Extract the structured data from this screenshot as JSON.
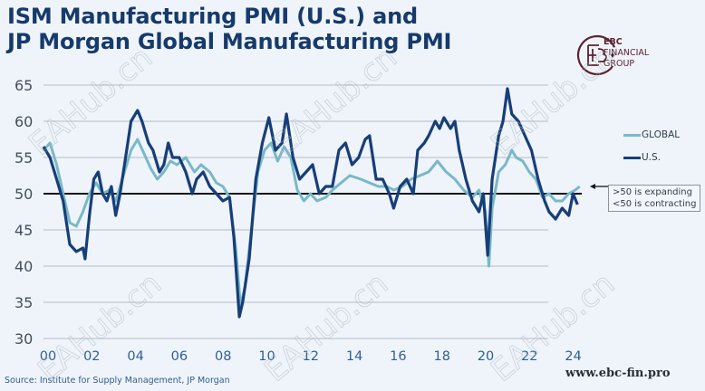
{
  "title_lines": [
    "ISM Manufacturing PMI (U.S.) and",
    "JP Morgan Global Manufacturing PMI"
  ],
  "logo": {
    "line1": "EBC",
    "line2": "FINANCIAL",
    "line3": "GROUP",
    "color": "#5a2430"
  },
  "source": "Source:  Institute for Supply Management, JP Morgan",
  "website": "www.ebc-fin.pro",
  "watermark_text": "EAHub.cn",
  "annotation": {
    "line1": ">50 is expanding",
    "line2": "<50 is contracting"
  },
  "chart_data": {
    "type": "line",
    "title": "ISM Manufacturing PMI (U.S.) and JP Morgan Global Manufacturing PMI",
    "xlabel": "",
    "ylabel": "",
    "xlim": [
      2000,
      2024.6
    ],
    "ylim": [
      30,
      65
    ],
    "yticks": [
      30,
      35,
      40,
      45,
      50,
      55,
      60,
      65
    ],
    "ytick_labels": [
      "30",
      "35",
      "40",
      "45",
      "50",
      "55",
      "60",
      "65"
    ],
    "xticks": [
      2000,
      2002,
      2004,
      2006,
      2008,
      2010,
      2012,
      2014,
      2016,
      2018,
      2020,
      2022,
      2024
    ],
    "xtick_labels": [
      "00",
      "02",
      "04",
      "06",
      "08",
      "10",
      "12",
      "14",
      "16",
      "18",
      "20",
      "22",
      "24"
    ],
    "grid": "horizontal",
    "reference_line": 50,
    "legend_position": "right",
    "series": [
      {
        "name": "GLOBAL",
        "color": "#79b8c8",
        "points": [
          [
            2000.0,
            56
          ],
          [
            2000.3,
            57
          ],
          [
            2000.6,
            54
          ],
          [
            2000.9,
            50
          ],
          [
            2001.2,
            46
          ],
          [
            2001.5,
            45.5
          ],
          [
            2001.8,
            47.5
          ],
          [
            2002.1,
            50
          ],
          [
            2002.4,
            51.5
          ],
          [
            2002.7,
            50
          ],
          [
            2003.0,
            50.5
          ],
          [
            2003.3,
            49
          ],
          [
            2003.7,
            53
          ],
          [
            2004.0,
            56
          ],
          [
            2004.3,
            57.5
          ],
          [
            2004.6,
            55.5
          ],
          [
            2004.9,
            53.5
          ],
          [
            2005.2,
            52
          ],
          [
            2005.5,
            53
          ],
          [
            2005.8,
            54.5
          ],
          [
            2006.1,
            54
          ],
          [
            2006.5,
            55
          ],
          [
            2006.9,
            53
          ],
          [
            2007.2,
            54
          ],
          [
            2007.6,
            53
          ],
          [
            2007.9,
            51.5
          ],
          [
            2008.2,
            51
          ],
          [
            2008.5,
            49.5
          ],
          [
            2008.8,
            42
          ],
          [
            2009.0,
            34.5
          ],
          [
            2009.2,
            37
          ],
          [
            2009.5,
            45
          ],
          [
            2009.8,
            53
          ],
          [
            2010.1,
            56
          ],
          [
            2010.4,
            57
          ],
          [
            2010.7,
            54.5
          ],
          [
            2011.0,
            56.5
          ],
          [
            2011.3,
            55
          ],
          [
            2011.6,
            50.5
          ],
          [
            2011.9,
            49
          ],
          [
            2012.2,
            50
          ],
          [
            2012.5,
            49
          ],
          [
            2012.9,
            49.5
          ],
          [
            2013.2,
            50.5
          ],
          [
            2013.6,
            51.5
          ],
          [
            2014.0,
            52.5
          ],
          [
            2014.5,
            52
          ],
          [
            2014.9,
            51.5
          ],
          [
            2015.3,
            51
          ],
          [
            2015.7,
            51
          ],
          [
            2016.0,
            50.5
          ],
          [
            2016.4,
            51
          ],
          [
            2016.8,
            52
          ],
          [
            2017.2,
            52.5
          ],
          [
            2017.6,
            53
          ],
          [
            2018.0,
            54.5
          ],
          [
            2018.4,
            53
          ],
          [
            2018.8,
            52
          ],
          [
            2019.2,
            50.5
          ],
          [
            2019.6,
            49.5
          ],
          [
            2019.9,
            50.5
          ],
          [
            2020.2,
            47.5
          ],
          [
            2020.35,
            40
          ],
          [
            2020.5,
            48
          ],
          [
            2020.8,
            53
          ],
          [
            2021.1,
            54
          ],
          [
            2021.4,
            56
          ],
          [
            2021.6,
            55
          ],
          [
            2021.9,
            54.5
          ],
          [
            2022.2,
            53
          ],
          [
            2022.5,
            52
          ],
          [
            2022.8,
            49.5
          ],
          [
            2023.1,
            50
          ],
          [
            2023.4,
            49
          ],
          [
            2023.7,
            49
          ],
          [
            2024.0,
            50
          ],
          [
            2024.3,
            50.5
          ],
          [
            2024.5,
            51
          ]
        ]
      },
      {
        "name": "U.S.",
        "color": "#173e78",
        "points": [
          [
            2000.0,
            56.5
          ],
          [
            2000.3,
            55
          ],
          [
            2000.6,
            52
          ],
          [
            2000.9,
            49
          ],
          [
            2001.2,
            43
          ],
          [
            2001.5,
            42
          ],
          [
            2001.8,
            42.5
          ],
          [
            2001.9,
            41
          ],
          [
            2002.1,
            47
          ],
          [
            2002.3,
            52
          ],
          [
            2002.5,
            53
          ],
          [
            2002.7,
            50
          ],
          [
            2002.9,
            49
          ],
          [
            2003.1,
            51
          ],
          [
            2003.3,
            47
          ],
          [
            2003.5,
            50
          ],
          [
            2003.8,
            56
          ],
          [
            2004.0,
            60
          ],
          [
            2004.3,
            61.5
          ],
          [
            2004.5,
            60
          ],
          [
            2004.8,
            57
          ],
          [
            2005.0,
            56
          ],
          [
            2005.3,
            53
          ],
          [
            2005.5,
            54
          ],
          [
            2005.7,
            57
          ],
          [
            2005.9,
            55
          ],
          [
            2006.2,
            55
          ],
          [
            2006.5,
            53
          ],
          [
            2006.8,
            50
          ],
          [
            2007.0,
            52
          ],
          [
            2007.3,
            53
          ],
          [
            2007.6,
            51
          ],
          [
            2007.9,
            50
          ],
          [
            2008.2,
            49
          ],
          [
            2008.5,
            49.5
          ],
          [
            2008.7,
            44
          ],
          [
            2008.95,
            33
          ],
          [
            2009.1,
            35
          ],
          [
            2009.4,
            41
          ],
          [
            2009.7,
            52
          ],
          [
            2010.0,
            57
          ],
          [
            2010.3,
            60.5
          ],
          [
            2010.6,
            56
          ],
          [
            2010.9,
            57
          ],
          [
            2011.1,
            61
          ],
          [
            2011.4,
            55
          ],
          [
            2011.7,
            52
          ],
          [
            2012.0,
            53
          ],
          [
            2012.3,
            54
          ],
          [
            2012.6,
            50
          ],
          [
            2012.9,
            51
          ],
          [
            2013.2,
            51
          ],
          [
            2013.5,
            56
          ],
          [
            2013.8,
            57
          ],
          [
            2014.1,
            54
          ],
          [
            2014.4,
            55
          ],
          [
            2014.7,
            57.5
          ],
          [
            2014.9,
            58
          ],
          [
            2015.2,
            52
          ],
          [
            2015.5,
            52
          ],
          [
            2015.8,
            50
          ],
          [
            2016.0,
            48
          ],
          [
            2016.3,
            51
          ],
          [
            2016.6,
            52
          ],
          [
            2016.9,
            50
          ],
          [
            2017.1,
            56
          ],
          [
            2017.4,
            57
          ],
          [
            2017.6,
            58
          ],
          [
            2017.9,
            60
          ],
          [
            2018.1,
            59
          ],
          [
            2018.3,
            60.5
          ],
          [
            2018.6,
            59
          ],
          [
            2018.8,
            60
          ],
          [
            2019.0,
            56
          ],
          [
            2019.3,
            52
          ],
          [
            2019.6,
            49
          ],
          [
            2019.9,
            47.5
          ],
          [
            2020.1,
            50
          ],
          [
            2020.3,
            41.5
          ],
          [
            2020.5,
            52
          ],
          [
            2020.8,
            58
          ],
          [
            2021.0,
            60
          ],
          [
            2021.2,
            64.5
          ],
          [
            2021.4,
            61
          ],
          [
            2021.7,
            60
          ],
          [
            2022.0,
            58
          ],
          [
            2022.3,
            56
          ],
          [
            2022.6,
            52
          ],
          [
            2022.9,
            49
          ],
          [
            2023.1,
            47.5
          ],
          [
            2023.4,
            46.5
          ],
          [
            2023.7,
            48
          ],
          [
            2024.0,
            47
          ],
          [
            2024.2,
            50
          ],
          [
            2024.4,
            48.5
          ]
        ]
      }
    ]
  }
}
